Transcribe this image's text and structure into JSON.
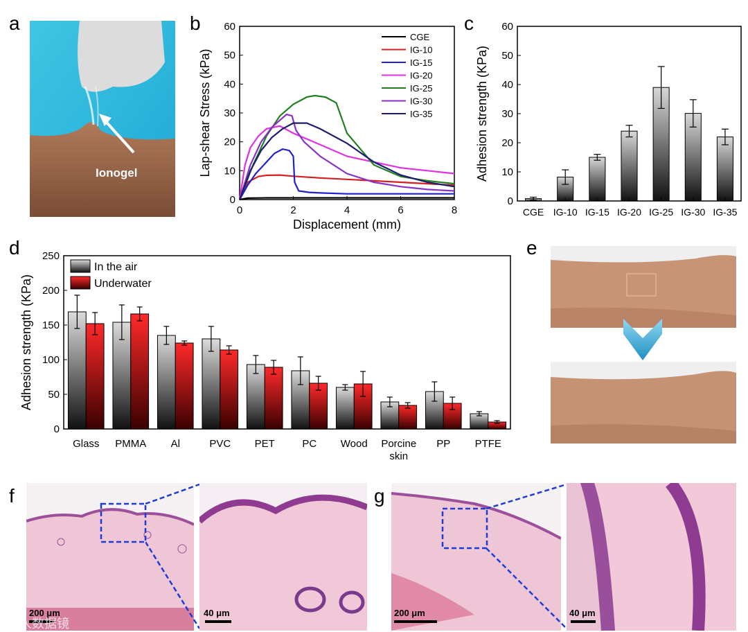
{
  "panels": {
    "a": "a",
    "b": "b",
    "c": "c",
    "d": "d",
    "e": "e",
    "f": "f",
    "g": "g"
  },
  "photo_a": {
    "label": "Ionogel"
  },
  "histology": {
    "f_scale_left": "200 μm",
    "f_scale_right": "40 μm",
    "g_scale_left": "200 μm",
    "g_scale_right": "40 μm"
  },
  "watermark": "人人数据镜",
  "chart_data": [
    {
      "id": "b",
      "type": "line",
      "title": "",
      "xlabel": "Displacement (mm)",
      "ylabel": "Lap-shear Stress (kPa)",
      "xlim": [
        0,
        8
      ],
      "ylim": [
        0,
        60
      ],
      "xticks": [
        0,
        2,
        4,
        6,
        8
      ],
      "yticks": [
        0,
        10,
        20,
        30,
        40,
        50,
        60
      ],
      "legend_position": "top-right",
      "series": [
        {
          "name": "CGE",
          "color": "#000000",
          "x": [
            0,
            0.3,
            1,
            2,
            3,
            4,
            5,
            6,
            7,
            8
          ],
          "y": [
            0,
            0.5,
            0.6,
            0.6,
            0.6,
            0.6,
            0.6,
            0.6,
            0.6,
            0.6
          ]
        },
        {
          "name": "IG-10",
          "color": "#d42020",
          "x": [
            0,
            0.3,
            0.7,
            1,
            1.5,
            2,
            3,
            4,
            5,
            6,
            7,
            8
          ],
          "y": [
            0,
            6,
            8,
            8.4,
            8.5,
            8.1,
            7.5,
            7,
            6.5,
            6,
            5.5,
            5
          ]
        },
        {
          "name": "IG-15",
          "color": "#2020d0",
          "x": [
            0,
            0.3,
            0.6,
            1,
            1.3,
            1.6,
            1.85,
            2.0,
            2.05,
            2.2,
            2.6,
            3,
            4,
            6,
            8
          ],
          "y": [
            0,
            5,
            9,
            13,
            16,
            17.5,
            17,
            15,
            6,
            3,
            2.5,
            2.3,
            2,
            2,
            2
          ]
        },
        {
          "name": "IG-20",
          "color": "#e030e0",
          "x": [
            0,
            0.2,
            0.4,
            0.7,
            1,
            1.5,
            2,
            3,
            4,
            5,
            6,
            7,
            8
          ],
          "y": [
            0,
            12,
            18,
            22,
            24.5,
            25.5,
            23,
            19,
            15,
            13,
            11,
            10,
            9
          ]
        },
        {
          "name": "IG-25",
          "color": "#208020",
          "x": [
            0,
            0.5,
            1,
            1.5,
            2,
            2.5,
            2.8,
            3.2,
            3.6,
            4,
            5,
            6,
            7,
            8
          ],
          "y": [
            0,
            12,
            22,
            29,
            33,
            35.5,
            36,
            35.5,
            33.5,
            23,
            12,
            8,
            6.5,
            5.5
          ]
        },
        {
          "name": "IG-30",
          "color": "#8830c8",
          "x": [
            0,
            0.4,
            0.8,
            1.2,
            1.5,
            1.75,
            1.95,
            2.1,
            2.4,
            3,
            4,
            5,
            6,
            7,
            8
          ],
          "y": [
            0,
            12,
            20,
            25,
            27.5,
            29.5,
            29,
            24,
            20,
            15,
            9,
            6,
            4.5,
            3.5,
            3
          ]
        },
        {
          "name": "IG-35",
          "color": "#1c1c70",
          "x": [
            0,
            0.4,
            0.8,
            1.2,
            1.6,
            2,
            2.5,
            3,
            4,
            5,
            6,
            7,
            8
          ],
          "y": [
            0,
            10,
            17,
            21.5,
            24.5,
            26.5,
            26.5,
            24.5,
            19.5,
            13,
            8.5,
            6,
            4.5
          ]
        }
      ]
    },
    {
      "id": "c",
      "type": "bar",
      "title": "",
      "xlabel": "",
      "ylabel": "Adhesion strength (KPa)",
      "ylim": [
        0,
        60
      ],
      "yticks": [
        0,
        10,
        20,
        30,
        40,
        50,
        60
      ],
      "categories": [
        "CGE",
        "IG-10",
        "IG-15",
        "IG-20",
        "IG-25",
        "IG-30",
        "IG-35"
      ],
      "values": [
        0.8,
        8.2,
        15,
        24,
        39,
        30.1,
        22
      ],
      "errors": [
        0.5,
        2.5,
        1,
        2,
        7.2,
        4.7,
        2.7
      ]
    },
    {
      "id": "d",
      "type": "bar",
      "title": "",
      "xlabel": "",
      "ylabel": "Adhesion strength (KPa)",
      "ylim": [
        0,
        250
      ],
      "yticks": [
        0,
        50,
        100,
        150,
        200,
        250
      ],
      "legend_position": "top-left",
      "categories": [
        "Glass",
        "PMMA",
        "Al",
        "PVC",
        "PET",
        "PC",
        "Wood",
        "Porcine skin",
        "PP",
        "PTFE"
      ],
      "series": [
        {
          "name": "In the air",
          "values": [
            169,
            154,
            135,
            130,
            93,
            84,
            60,
            39,
            54,
            22
          ],
          "errors": [
            24,
            25,
            13,
            18,
            13,
            20,
            4,
            7,
            14,
            3
          ]
        },
        {
          "name": "Underwater",
          "values": [
            152,
            166,
            124,
            114,
            89,
            66,
            65,
            34,
            37,
            10
          ],
          "errors": [
            16,
            10,
            3,
            6,
            10,
            10,
            18,
            4,
            9,
            2
          ]
        }
      ]
    }
  ]
}
